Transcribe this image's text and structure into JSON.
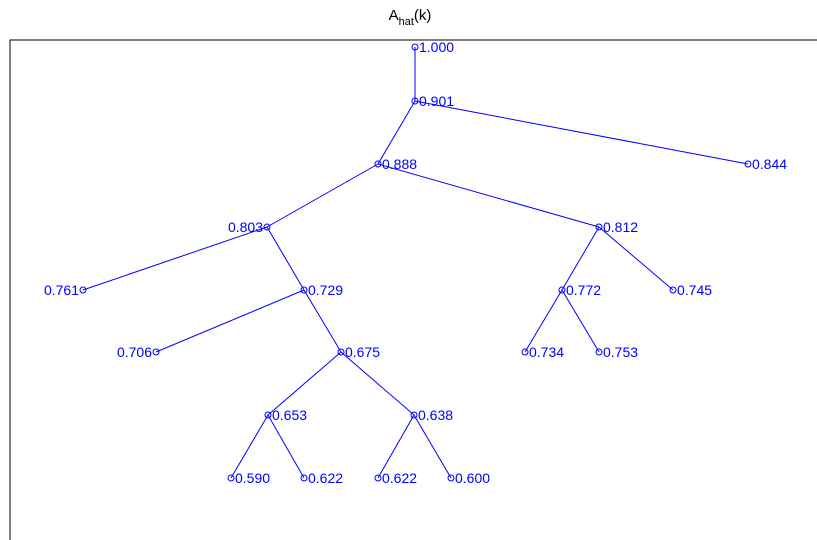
{
  "title": {
    "main": "A",
    "subscript": "hat",
    "suffix": "(k)"
  },
  "colors": {
    "tree": "#0000ff",
    "frame": "#000000",
    "background": "#ffffff"
  },
  "nodes": [
    {
      "id": "n1",
      "value": "1.000",
      "label_side": "right"
    },
    {
      "id": "n2",
      "value": "0.901",
      "label_side": "right"
    },
    {
      "id": "n3",
      "value": "0.844",
      "label_side": "right"
    },
    {
      "id": "n4",
      "value": "0.888",
      "label_side": "right"
    },
    {
      "id": "n5",
      "value": "0.803",
      "label_side": "left"
    },
    {
      "id": "n6",
      "value": "0.812",
      "label_side": "right"
    },
    {
      "id": "n7",
      "value": "0.761",
      "label_side": "left"
    },
    {
      "id": "n8",
      "value": "0.729",
      "label_side": "right"
    },
    {
      "id": "n9",
      "value": "0.772",
      "label_side": "right"
    },
    {
      "id": "n10",
      "value": "0.745",
      "label_side": "right"
    },
    {
      "id": "n11",
      "value": "0.706",
      "label_side": "left"
    },
    {
      "id": "n12",
      "value": "0.675",
      "label_side": "right"
    },
    {
      "id": "n13",
      "value": "0.734",
      "label_side": "right"
    },
    {
      "id": "n14",
      "value": "0.753",
      "label_side": "right"
    },
    {
      "id": "n15",
      "value": "0.653",
      "label_side": "right"
    },
    {
      "id": "n16",
      "value": "0.638",
      "label_side": "right"
    },
    {
      "id": "n17",
      "value": "0.590",
      "label_side": "right"
    },
    {
      "id": "n18",
      "value": "0.622",
      "label_side": "right"
    },
    {
      "id": "n19",
      "value": "0.622",
      "label_side": "right"
    },
    {
      "id": "n20",
      "value": "0.600",
      "label_side": "right"
    }
  ],
  "edges": [
    [
      "n1",
      "n2"
    ],
    [
      "n2",
      "n4"
    ],
    [
      "n2",
      "n3"
    ],
    [
      "n4",
      "n5"
    ],
    [
      "n4",
      "n6"
    ],
    [
      "n5",
      "n7"
    ],
    [
      "n5",
      "n8"
    ],
    [
      "n6",
      "n9"
    ],
    [
      "n6",
      "n10"
    ],
    [
      "n8",
      "n11"
    ],
    [
      "n8",
      "n12"
    ],
    [
      "n9",
      "n13"
    ],
    [
      "n9",
      "n14"
    ],
    [
      "n12",
      "n15"
    ],
    [
      "n12",
      "n16"
    ],
    [
      "n15",
      "n17"
    ],
    [
      "n15",
      "n18"
    ],
    [
      "n16",
      "n19"
    ],
    [
      "n16",
      "n20"
    ]
  ]
}
